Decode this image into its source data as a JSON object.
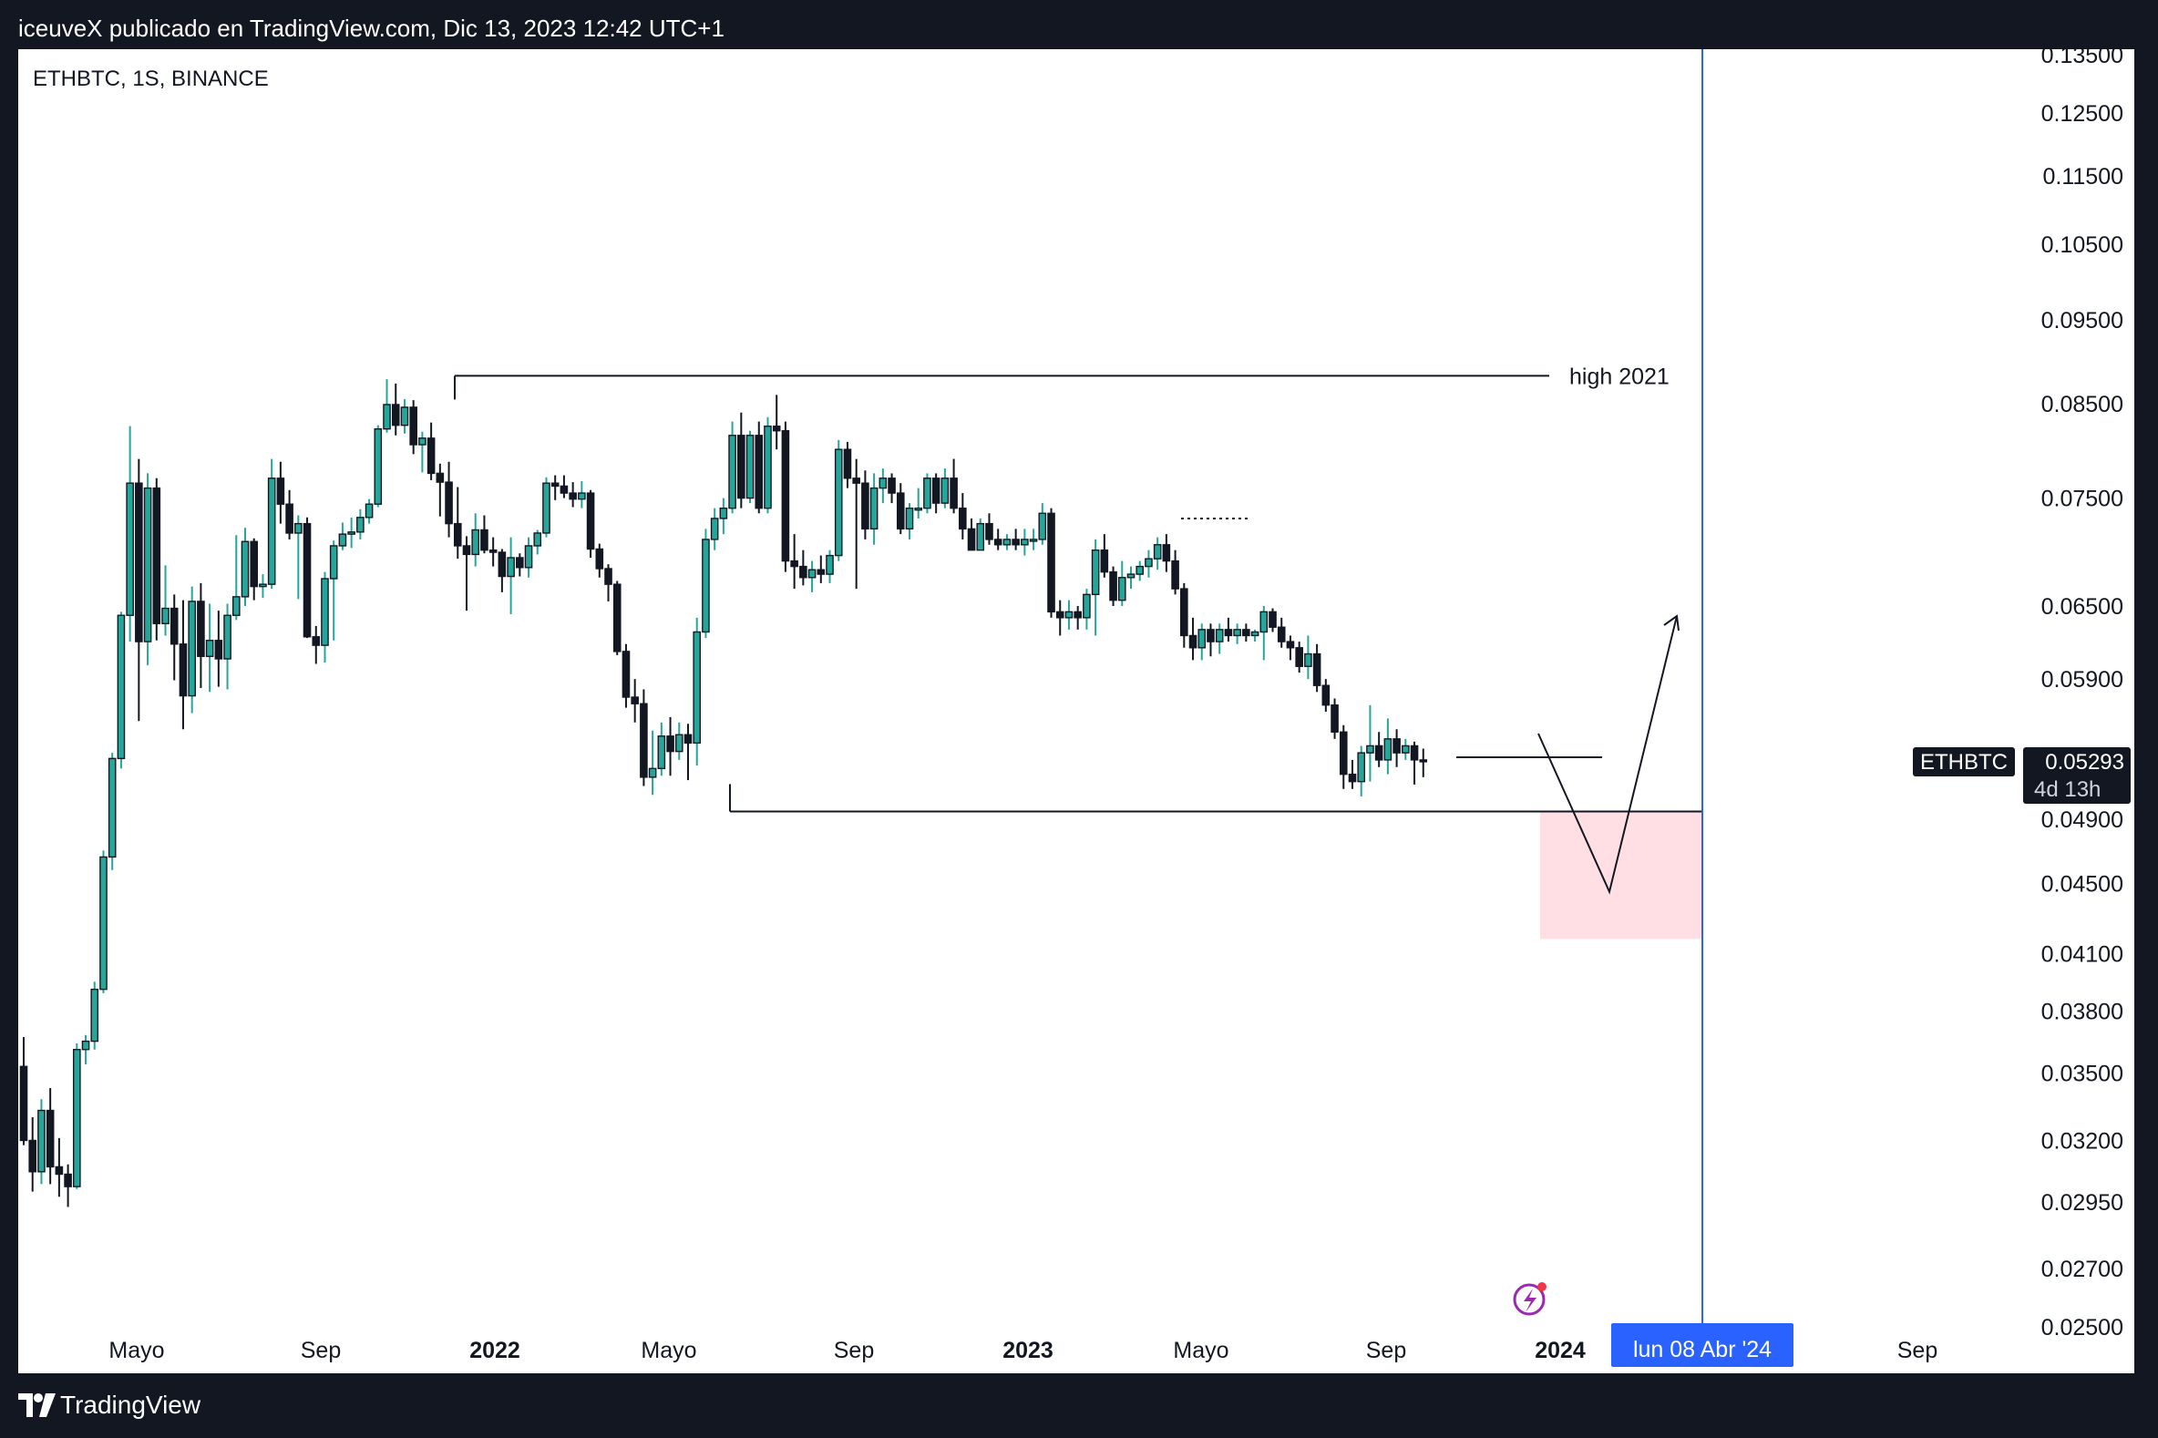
{
  "header": {
    "published": "iceuveX publicado en TradingView.com, Dic 13, 2023 12:42 UTC+1"
  },
  "footer": {
    "brand": "TradingView",
    "logo_icon": "tradingview-logo-icon"
  },
  "colors": {
    "up": "#26a69a",
    "down": "#131722",
    "crosshair": "#2962ff",
    "zone": "#ffdfe3",
    "price_tag": "#131722",
    "frame": "#131722",
    "plot_bg": "#ffffff"
  },
  "chart_data": {
    "type": "candlestick",
    "title": "ETHBTC, 1S, BINANCE",
    "scale": "log",
    "ylim": [
      0.0235,
      0.136
    ],
    "price_ticks": [
      "0.13500",
      "0.12500",
      "0.11500",
      "0.10500",
      "0.09500",
      "0.08500",
      "0.07500",
      "0.06500",
      "0.05900",
      "0.04900",
      "0.04500",
      "0.04100",
      "0.03800",
      "0.03500",
      "0.03200",
      "0.02950",
      "0.02700",
      "0.02500"
    ],
    "time_labels": [
      {
        "label": "Mayo",
        "bold": false
      },
      {
        "label": "Sep",
        "bold": false
      },
      {
        "label": "2022",
        "bold": true
      },
      {
        "label": "Mayo",
        "bold": false
      },
      {
        "label": "Sep",
        "bold": false
      },
      {
        "label": "2023",
        "bold": true
      },
      {
        "label": "Mayo",
        "bold": false
      },
      {
        "label": "Sep",
        "bold": false
      },
      {
        "label": "2024",
        "bold": true
      },
      {
        "label": "Sep",
        "bold": false
      }
    ],
    "crosshair_label": "lun 08 Abr '24",
    "last_price": {
      "symbol": "ETHBTC",
      "price": "0.05293",
      "countdown": "4d 13h"
    },
    "annotations": {
      "high_label": "high 2021",
      "high_value": 0.0882,
      "low_value": 0.0495,
      "target_value": 0.0445,
      "zone": [
        0.0495,
        0.0418
      ]
    },
    "candles": [
      {
        "o": 0.0353,
        "h": 0.0367,
        "l": 0.0318,
        "c": 0.032
      },
      {
        "o": 0.032,
        "h": 0.033,
        "l": 0.0299,
        "c": 0.0307
      },
      {
        "o": 0.0307,
        "h": 0.0338,
        "l": 0.0302,
        "c": 0.0333
      },
      {
        "o": 0.0333,
        "h": 0.0343,
        "l": 0.0302,
        "c": 0.0309
      },
      {
        "o": 0.0309,
        "h": 0.0321,
        "l": 0.0297,
        "c": 0.0306
      },
      {
        "o": 0.0306,
        "h": 0.031,
        "l": 0.0293,
        "c": 0.0301
      },
      {
        "o": 0.0301,
        "h": 0.0364,
        "l": 0.03,
        "c": 0.0361
      },
      {
        "o": 0.0361,
        "h": 0.0368,
        "l": 0.0354,
        "c": 0.0365
      },
      {
        "o": 0.0365,
        "h": 0.0395,
        "l": 0.0361,
        "c": 0.0391
      },
      {
        "o": 0.0391,
        "h": 0.047,
        "l": 0.0389,
        "c": 0.0466
      },
      {
        "o": 0.0466,
        "h": 0.0535,
        "l": 0.0458,
        "c": 0.0531
      },
      {
        "o": 0.0531,
        "h": 0.0645,
        "l": 0.0524,
        "c": 0.0642
      },
      {
        "o": 0.0642,
        "h": 0.0825,
        "l": 0.062,
        "c": 0.0765
      },
      {
        "o": 0.0765,
        "h": 0.079,
        "l": 0.0558,
        "c": 0.062
      },
      {
        "o": 0.062,
        "h": 0.0775,
        "l": 0.0601,
        "c": 0.076
      },
      {
        "o": 0.076,
        "h": 0.077,
        "l": 0.0621,
        "c": 0.0635
      },
      {
        "o": 0.0635,
        "h": 0.0686,
        "l": 0.0625,
        "c": 0.0648
      },
      {
        "o": 0.0648,
        "h": 0.066,
        "l": 0.0589,
        "c": 0.0618
      },
      {
        "o": 0.0618,
        "h": 0.0655,
        "l": 0.0552,
        "c": 0.0577
      },
      {
        "o": 0.0577,
        "h": 0.0667,
        "l": 0.0564,
        "c": 0.0654
      },
      {
        "o": 0.0654,
        "h": 0.067,
        "l": 0.0583,
        "c": 0.0608
      },
      {
        "o": 0.0608,
        "h": 0.0652,
        "l": 0.058,
        "c": 0.0621
      },
      {
        "o": 0.0621,
        "h": 0.0646,
        "l": 0.0584,
        "c": 0.0606
      },
      {
        "o": 0.0606,
        "h": 0.0652,
        "l": 0.0582,
        "c": 0.0642
      },
      {
        "o": 0.0642,
        "h": 0.0714,
        "l": 0.0638,
        "c": 0.0658
      },
      {
        "o": 0.0658,
        "h": 0.0721,
        "l": 0.065,
        "c": 0.0708
      },
      {
        "o": 0.0708,
        "h": 0.0711,
        "l": 0.0655,
        "c": 0.0667
      },
      {
        "o": 0.0667,
        "h": 0.0678,
        "l": 0.0657,
        "c": 0.0669
      },
      {
        "o": 0.0669,
        "h": 0.079,
        "l": 0.0665,
        "c": 0.077
      },
      {
        "o": 0.077,
        "h": 0.0787,
        "l": 0.0725,
        "c": 0.0744
      },
      {
        "o": 0.0744,
        "h": 0.0758,
        "l": 0.071,
        "c": 0.0716
      },
      {
        "o": 0.0716,
        "h": 0.0733,
        "l": 0.0656,
        "c": 0.0725
      },
      {
        "o": 0.0725,
        "h": 0.0731,
        "l": 0.0623,
        "c": 0.0624
      },
      {
        "o": 0.0624,
        "h": 0.0633,
        "l": 0.0602,
        "c": 0.0617
      },
      {
        "o": 0.0617,
        "h": 0.068,
        "l": 0.0603,
        "c": 0.0674
      },
      {
        "o": 0.0674,
        "h": 0.0709,
        "l": 0.0621,
        "c": 0.0704
      },
      {
        "o": 0.0704,
        "h": 0.0726,
        "l": 0.07,
        "c": 0.0715
      },
      {
        "o": 0.0715,
        "h": 0.0731,
        "l": 0.0702,
        "c": 0.0717
      },
      {
        "o": 0.0717,
        "h": 0.0739,
        "l": 0.071,
        "c": 0.0731
      },
      {
        "o": 0.0731,
        "h": 0.0749,
        "l": 0.0725,
        "c": 0.0744
      },
      {
        "o": 0.0744,
        "h": 0.0826,
        "l": 0.0741,
        "c": 0.0822
      },
      {
        "o": 0.0822,
        "h": 0.0878,
        "l": 0.0818,
        "c": 0.0849
      },
      {
        "o": 0.0849,
        "h": 0.0873,
        "l": 0.0815,
        "c": 0.0826
      },
      {
        "o": 0.0826,
        "h": 0.0855,
        "l": 0.0817,
        "c": 0.0846
      },
      {
        "o": 0.0846,
        "h": 0.0854,
        "l": 0.0795,
        "c": 0.0805
      },
      {
        "o": 0.0805,
        "h": 0.0819,
        "l": 0.0776,
        "c": 0.0812
      },
      {
        "o": 0.0812,
        "h": 0.0829,
        "l": 0.0768,
        "c": 0.0775
      },
      {
        "o": 0.0775,
        "h": 0.0785,
        "l": 0.0732,
        "c": 0.0766
      },
      {
        "o": 0.0766,
        "h": 0.0787,
        "l": 0.0712,
        "c": 0.0725
      },
      {
        "o": 0.0725,
        "h": 0.0761,
        "l": 0.0692,
        "c": 0.0704
      },
      {
        "o": 0.0704,
        "h": 0.0713,
        "l": 0.0646,
        "c": 0.0696
      },
      {
        "o": 0.0696,
        "h": 0.0735,
        "l": 0.0685,
        "c": 0.0719
      },
      {
        "o": 0.0719,
        "h": 0.0733,
        "l": 0.0697,
        "c": 0.07
      },
      {
        "o": 0.07,
        "h": 0.0712,
        "l": 0.0685,
        "c": 0.0698
      },
      {
        "o": 0.0698,
        "h": 0.0701,
        "l": 0.0662,
        "c": 0.0676
      },
      {
        "o": 0.0676,
        "h": 0.0712,
        "l": 0.0643,
        "c": 0.0693
      },
      {
        "o": 0.0693,
        "h": 0.0697,
        "l": 0.0676,
        "c": 0.0684
      },
      {
        "o": 0.0684,
        "h": 0.0712,
        "l": 0.0675,
        "c": 0.0704
      },
      {
        "o": 0.0704,
        "h": 0.0719,
        "l": 0.0696,
        "c": 0.0716
      },
      {
        "o": 0.0716,
        "h": 0.0771,
        "l": 0.0712,
        "c": 0.0765
      },
      {
        "o": 0.0765,
        "h": 0.0773,
        "l": 0.0748,
        "c": 0.0762
      },
      {
        "o": 0.0762,
        "h": 0.0773,
        "l": 0.075,
        "c": 0.0755
      },
      {
        "o": 0.0755,
        "h": 0.0766,
        "l": 0.0741,
        "c": 0.0749
      },
      {
        "o": 0.0749,
        "h": 0.0767,
        "l": 0.074,
        "c": 0.0755
      },
      {
        "o": 0.0755,
        "h": 0.0758,
        "l": 0.0693,
        "c": 0.0701
      },
      {
        "o": 0.0701,
        "h": 0.0706,
        "l": 0.0675,
        "c": 0.0683
      },
      {
        "o": 0.0683,
        "h": 0.0687,
        "l": 0.0654,
        "c": 0.0669
      },
      {
        "o": 0.0669,
        "h": 0.0672,
        "l": 0.0609,
        "c": 0.0612
      },
      {
        "o": 0.0612,
        "h": 0.0618,
        "l": 0.0568,
        "c": 0.0576
      },
      {
        "o": 0.0576,
        "h": 0.059,
        "l": 0.0557,
        "c": 0.0571
      },
      {
        "o": 0.0571,
        "h": 0.0582,
        "l": 0.0512,
        "c": 0.0518
      },
      {
        "o": 0.0518,
        "h": 0.0551,
        "l": 0.0506,
        "c": 0.0524
      },
      {
        "o": 0.0524,
        "h": 0.0557,
        "l": 0.0519,
        "c": 0.0547
      },
      {
        "o": 0.0547,
        "h": 0.0561,
        "l": 0.0519,
        "c": 0.0536
      },
      {
        "o": 0.0536,
        "h": 0.0557,
        "l": 0.053,
        "c": 0.0548
      },
      {
        "o": 0.0548,
        "h": 0.0556,
        "l": 0.0516,
        "c": 0.0542
      },
      {
        "o": 0.0542,
        "h": 0.064,
        "l": 0.0526,
        "c": 0.0628
      },
      {
        "o": 0.0628,
        "h": 0.072,
        "l": 0.0623,
        "c": 0.071
      },
      {
        "o": 0.071,
        "h": 0.074,
        "l": 0.07,
        "c": 0.073
      },
      {
        "o": 0.073,
        "h": 0.075,
        "l": 0.0715,
        "c": 0.074
      },
      {
        "o": 0.074,
        "h": 0.083,
        "l": 0.0735,
        "c": 0.0815
      },
      {
        "o": 0.0815,
        "h": 0.084,
        "l": 0.074,
        "c": 0.075
      },
      {
        "o": 0.075,
        "h": 0.082,
        "l": 0.0745,
        "c": 0.0815
      },
      {
        "o": 0.0815,
        "h": 0.083,
        "l": 0.0735,
        "c": 0.074
      },
      {
        "o": 0.074,
        "h": 0.0835,
        "l": 0.0735,
        "c": 0.0825
      },
      {
        "o": 0.0825,
        "h": 0.086,
        "l": 0.08,
        "c": 0.082
      },
      {
        "o": 0.082,
        "h": 0.083,
        "l": 0.068,
        "c": 0.069
      },
      {
        "o": 0.069,
        "h": 0.0715,
        "l": 0.0665,
        "c": 0.0685
      },
      {
        "o": 0.0685,
        "h": 0.07,
        "l": 0.0668,
        "c": 0.0675
      },
      {
        "o": 0.0675,
        "h": 0.069,
        "l": 0.0662,
        "c": 0.0682
      },
      {
        "o": 0.0682,
        "h": 0.0695,
        "l": 0.067,
        "c": 0.0678
      },
      {
        "o": 0.0678,
        "h": 0.07,
        "l": 0.067,
        "c": 0.0695
      },
      {
        "o": 0.0695,
        "h": 0.081,
        "l": 0.069,
        "c": 0.08
      },
      {
        "o": 0.08,
        "h": 0.0808,
        "l": 0.076,
        "c": 0.077
      },
      {
        "o": 0.077,
        "h": 0.079,
        "l": 0.0665,
        "c": 0.0765
      },
      {
        "o": 0.0765,
        "h": 0.0778,
        "l": 0.071,
        "c": 0.072
      },
      {
        "o": 0.072,
        "h": 0.0775,
        "l": 0.0705,
        "c": 0.076
      },
      {
        "o": 0.076,
        "h": 0.078,
        "l": 0.0745,
        "c": 0.077
      },
      {
        "o": 0.077,
        "h": 0.0775,
        "l": 0.0745,
        "c": 0.0755
      },
      {
        "o": 0.0755,
        "h": 0.0765,
        "l": 0.0715,
        "c": 0.072
      },
      {
        "o": 0.072,
        "h": 0.0745,
        "l": 0.071,
        "c": 0.074
      },
      {
        "o": 0.074,
        "h": 0.076,
        "l": 0.073,
        "c": 0.074
      },
      {
        "o": 0.074,
        "h": 0.0775,
        "l": 0.0735,
        "c": 0.077
      },
      {
        "o": 0.077,
        "h": 0.0775,
        "l": 0.0735,
        "c": 0.0745
      },
      {
        "o": 0.0745,
        "h": 0.078,
        "l": 0.074,
        "c": 0.077
      },
      {
        "o": 0.077,
        "h": 0.079,
        "l": 0.0735,
        "c": 0.074
      },
      {
        "o": 0.074,
        "h": 0.0755,
        "l": 0.071,
        "c": 0.072
      },
      {
        "o": 0.072,
        "h": 0.073,
        "l": 0.07,
        "c": 0.07
      },
      {
        "o": 0.07,
        "h": 0.073,
        "l": 0.07,
        "c": 0.0725
      },
      {
        "o": 0.0725,
        "h": 0.0735,
        "l": 0.0705,
        "c": 0.071
      },
      {
        "o": 0.071,
        "h": 0.072,
        "l": 0.07,
        "c": 0.0705
      },
      {
        "o": 0.0705,
        "h": 0.0715,
        "l": 0.07,
        "c": 0.071
      },
      {
        "o": 0.071,
        "h": 0.072,
        "l": 0.07,
        "c": 0.0705
      },
      {
        "o": 0.0705,
        "h": 0.072,
        "l": 0.0695,
        "c": 0.071
      },
      {
        "o": 0.071,
        "h": 0.072,
        "l": 0.07,
        "c": 0.071
      },
      {
        "o": 0.071,
        "h": 0.0745,
        "l": 0.0705,
        "c": 0.0735
      },
      {
        "o": 0.0735,
        "h": 0.074,
        "l": 0.064,
        "c": 0.0645
      },
      {
        "o": 0.0645,
        "h": 0.0655,
        "l": 0.0625,
        "c": 0.064
      },
      {
        "o": 0.064,
        "h": 0.0655,
        "l": 0.063,
        "c": 0.0645
      },
      {
        "o": 0.0645,
        "h": 0.065,
        "l": 0.063,
        "c": 0.064
      },
      {
        "o": 0.064,
        "h": 0.0665,
        "l": 0.063,
        "c": 0.066
      },
      {
        "o": 0.066,
        "h": 0.071,
        "l": 0.0625,
        "c": 0.07
      },
      {
        "o": 0.07,
        "h": 0.0715,
        "l": 0.0675,
        "c": 0.068
      },
      {
        "o": 0.068,
        "h": 0.0685,
        "l": 0.065,
        "c": 0.0655
      },
      {
        "o": 0.0655,
        "h": 0.069,
        "l": 0.065,
        "c": 0.0675
      },
      {
        "o": 0.0675,
        "h": 0.0685,
        "l": 0.0665,
        "c": 0.0678
      },
      {
        "o": 0.0678,
        "h": 0.069,
        "l": 0.0672,
        "c": 0.0685
      },
      {
        "o": 0.0685,
        "h": 0.07,
        "l": 0.0675,
        "c": 0.0692
      },
      {
        "o": 0.0692,
        "h": 0.0712,
        "l": 0.0682,
        "c": 0.0705
      },
      {
        "o": 0.0705,
        "h": 0.0715,
        "l": 0.068,
        "c": 0.069
      },
      {
        "o": 0.069,
        "h": 0.07,
        "l": 0.066,
        "c": 0.0665
      },
      {
        "o": 0.0665,
        "h": 0.067,
        "l": 0.0615,
        "c": 0.0625
      },
      {
        "o": 0.0625,
        "h": 0.064,
        "l": 0.0605,
        "c": 0.0615
      },
      {
        "o": 0.0615,
        "h": 0.0635,
        "l": 0.0605,
        "c": 0.063
      },
      {
        "o": 0.063,
        "h": 0.0635,
        "l": 0.0608,
        "c": 0.062
      },
      {
        "o": 0.062,
        "h": 0.0635,
        "l": 0.061,
        "c": 0.063
      },
      {
        "o": 0.063,
        "h": 0.064,
        "l": 0.062,
        "c": 0.0625
      },
      {
        "o": 0.0625,
        "h": 0.0635,
        "l": 0.0618,
        "c": 0.063
      },
      {
        "o": 0.063,
        "h": 0.0635,
        "l": 0.062,
        "c": 0.0625
      },
      {
        "o": 0.0625,
        "h": 0.063,
        "l": 0.062,
        "c": 0.0628
      },
      {
        "o": 0.0628,
        "h": 0.065,
        "l": 0.0605,
        "c": 0.0645
      },
      {
        "o": 0.0645,
        "h": 0.0648,
        "l": 0.0628,
        "c": 0.0632
      },
      {
        "o": 0.0632,
        "h": 0.064,
        "l": 0.0615,
        "c": 0.062
      },
      {
        "o": 0.062,
        "h": 0.0625,
        "l": 0.0605,
        "c": 0.0615
      },
      {
        "o": 0.0615,
        "h": 0.062,
        "l": 0.0595,
        "c": 0.06
      },
      {
        "o": 0.06,
        "h": 0.0625,
        "l": 0.059,
        "c": 0.061
      },
      {
        "o": 0.061,
        "h": 0.0618,
        "l": 0.058,
        "c": 0.0585
      },
      {
        "o": 0.0585,
        "h": 0.059,
        "l": 0.0565,
        "c": 0.057
      },
      {
        "o": 0.057,
        "h": 0.0575,
        "l": 0.0545,
        "c": 0.055
      },
      {
        "o": 0.055,
        "h": 0.0555,
        "l": 0.051,
        "c": 0.052
      },
      {
        "o": 0.052,
        "h": 0.053,
        "l": 0.051,
        "c": 0.0515
      },
      {
        "o": 0.0515,
        "h": 0.054,
        "l": 0.0505,
        "c": 0.0535
      },
      {
        "o": 0.0535,
        "h": 0.057,
        "l": 0.0515,
        "c": 0.054
      },
      {
        "o": 0.054,
        "h": 0.055,
        "l": 0.0525,
        "c": 0.053
      },
      {
        "o": 0.053,
        "h": 0.056,
        "l": 0.052,
        "c": 0.0545
      },
      {
        "o": 0.0545,
        "h": 0.0552,
        "l": 0.0525,
        "c": 0.0535
      },
      {
        "o": 0.0535,
        "h": 0.0545,
        "l": 0.053,
        "c": 0.054
      },
      {
        "o": 0.054,
        "h": 0.0543,
        "l": 0.0513,
        "c": 0.053
      },
      {
        "o": 0.053,
        "h": 0.0538,
        "l": 0.0518,
        "c": 0.0529
      }
    ]
  }
}
